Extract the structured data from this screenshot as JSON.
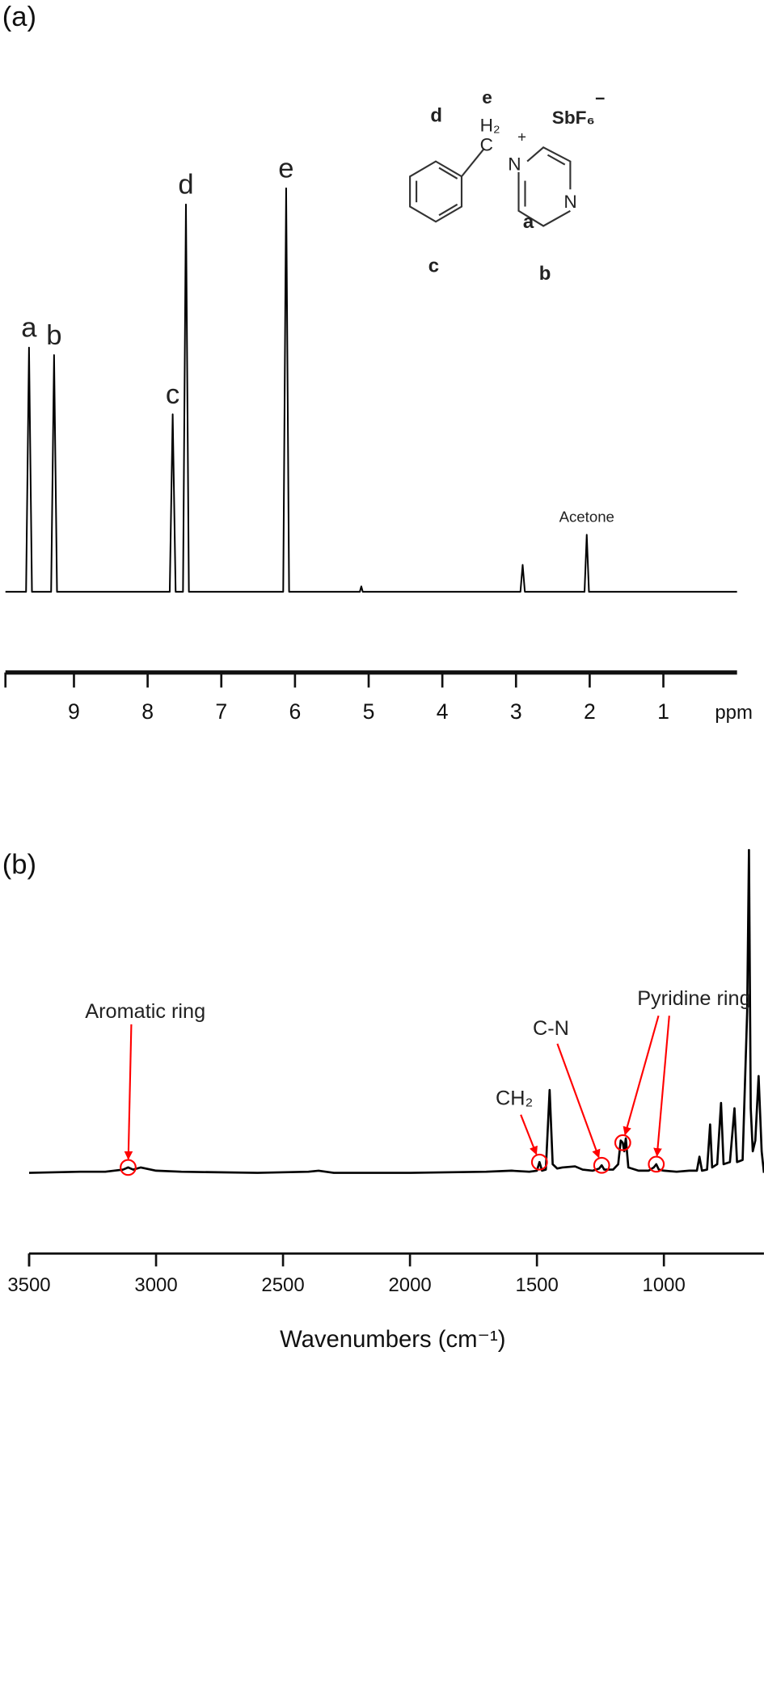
{
  "chart_data": [
    {
      "type": "line",
      "panel": "(a)",
      "x": [
        9.93,
        9.65,
        9.61,
        9.57,
        9.31,
        9.27,
        9.23,
        7.7,
        7.66,
        7.62,
        7.52,
        7.48,
        7.44,
        6.16,
        6.12,
        6.08,
        5.12,
        5.1,
        5.08,
        2.94,
        2.91,
        2.88,
        2.07,
        2.04,
        2.01,
        0
      ],
      "values": [
        0,
        0,
        227,
        0,
        0,
        220,
        0,
        0,
        165,
        0,
        0,
        360,
        0,
        0,
        375,
        0,
        0,
        5,
        0,
        0,
        25,
        0,
        0,
        53,
        0,
        0
      ],
      "xlim": [
        9.93,
        0
      ],
      "xticks": [
        9,
        8,
        7,
        6,
        5,
        4,
        3,
        2,
        1
      ],
      "x_label": "ppm",
      "color": "#000000",
      "peak_labels": [
        {
          "text": "a",
          "x": 9.61
        },
        {
          "text": "b",
          "x": 9.27
        },
        {
          "text": "c",
          "x": 7.66
        },
        {
          "text": "d",
          "x": 7.48
        },
        {
          "text": "e",
          "x": 6.12
        },
        {
          "text": "Acetone",
          "x": 2.04
        }
      ]
    },
    {
      "type": "line",
      "panel": "(b)",
      "x": [
        3500,
        3300,
        3200,
        3130,
        3110,
        3090,
        3060,
        3000,
        2900,
        2600,
        2400,
        2360,
        2300,
        2000,
        1700,
        1600,
        1530,
        1500,
        1490,
        1480,
        1465,
        1450,
        1438,
        1420,
        1400,
        1350,
        1320,
        1280,
        1255,
        1245,
        1235,
        1200,
        1180,
        1170,
        1162,
        1156,
        1150,
        1140,
        1100,
        1060,
        1040,
        1030,
        1020,
        1000,
        950,
        900,
        870,
        860,
        850,
        830,
        818,
        810,
        790,
        775,
        765,
        740,
        722,
        712,
        690,
        672,
        665,
        658,
        650,
        640,
        627,
        615,
        606
      ],
      "values": [
        0,
        1,
        1,
        3,
        5,
        3,
        5,
        2,
        1,
        0,
        1,
        2,
        0,
        0,
        1,
        2,
        1,
        2,
        10,
        2,
        3,
        77,
        8,
        4,
        5,
        6,
        3,
        2,
        4,
        7,
        3,
        3,
        8,
        30,
        28,
        20,
        32,
        5,
        2,
        2,
        5,
        8,
        3,
        2,
        1,
        2,
        2,
        15,
        2,
        3,
        45,
        5,
        8,
        65,
        8,
        10,
        60,
        10,
        12,
        150,
        300,
        60,
        20,
        30,
        90,
        20,
        0
      ],
      "xlim": [
        3500,
        606
      ],
      "xticks": [
        3500,
        3000,
        2500,
        2000,
        1500,
        1000
      ],
      "x_label": "Wavenumbers (cm⁻¹)",
      "color": "#000000",
      "annotation_color": "#ff0000",
      "annotations": [
        {
          "text": "Aromatic ring",
          "x": [
            3110
          ]
        },
        {
          "text": "CH₂",
          "x": [
            1490
          ]
        },
        {
          "text": "C-N",
          "x": [
            1245
          ]
        },
        {
          "text": "Pyridine ring",
          "x": [
            1162,
            1030
          ]
        }
      ]
    }
  ],
  "structure": {
    "labels": [
      "e",
      "H₂",
      "C",
      "N",
      "+",
      "SbF₆",
      "−",
      "d",
      "c",
      "a",
      "b",
      "N"
    ]
  }
}
